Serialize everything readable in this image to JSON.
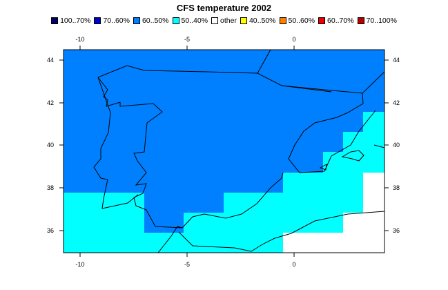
{
  "title": "CFS temperature 2002",
  "legend": [
    {
      "label": "100..70%",
      "color": "#000066"
    },
    {
      "label": "70..60%",
      "color": "#0000cc"
    },
    {
      "label": "60..50%",
      "color": "#0080ff"
    },
    {
      "label": "50..40%",
      "color": "#00ffff"
    },
    {
      "label": "other",
      "color": "#ffffff"
    },
    {
      "label": "40..50%",
      "color": "#ffff00"
    },
    {
      "label": "50..60%",
      "color": "#ff8000"
    },
    {
      "label": "60..70%",
      "color": "#ee0000"
    },
    {
      "label": "70..100%",
      "color": "#b30000"
    }
  ],
  "axes": {
    "x_ticks": [
      "-10",
      "-5",
      "0"
    ],
    "y_ticks": [
      "36",
      "38",
      "40",
      "42",
      "44"
    ]
  },
  "colors": {
    "blue_category": "#0080ff",
    "cyan_category": "#00ffff",
    "white_category": "#ffffff"
  }
}
